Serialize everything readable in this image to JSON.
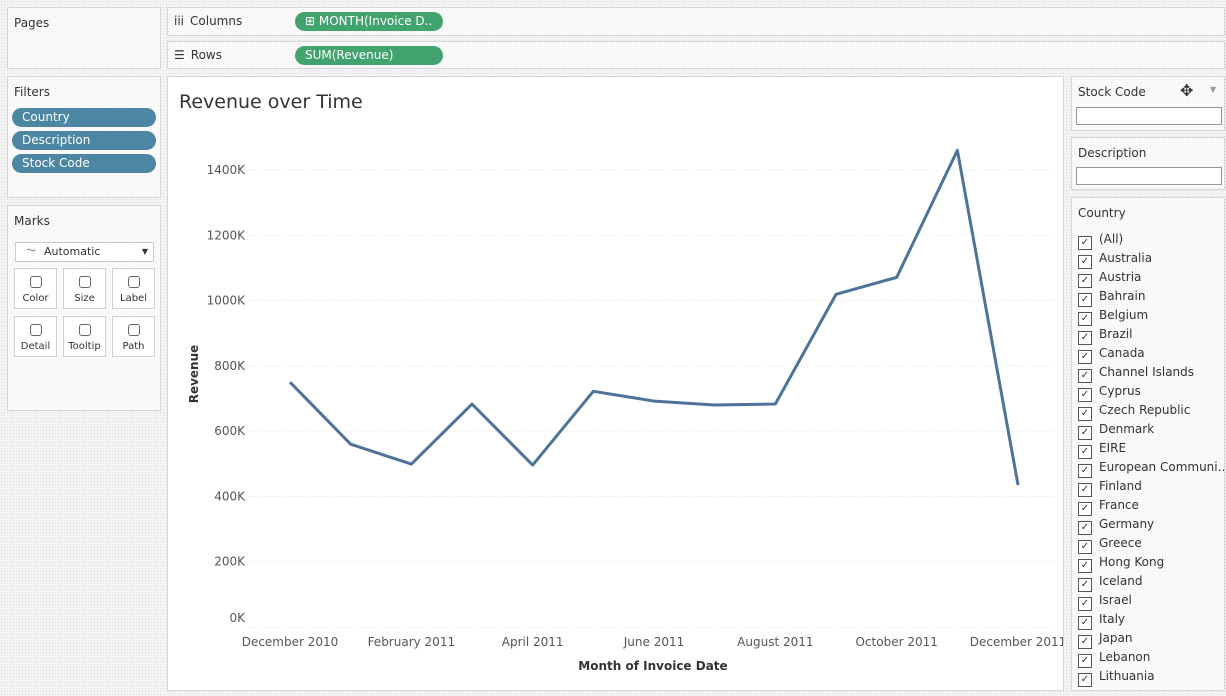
{
  "pages": {
    "title": "Pages"
  },
  "shelves": {
    "columns_label": "Columns",
    "columns_pill": "MONTH(Invoice D..",
    "rows_label": "Rows",
    "rows_pill": "SUM(Revenue)"
  },
  "filters": {
    "title": "Filters",
    "items": [
      "Country",
      "Description",
      "Stock Code"
    ]
  },
  "marks": {
    "title": "Marks",
    "mark_type": "Automatic",
    "buttons": [
      "Color",
      "Size",
      "Label",
      "Detail",
      "Tooltip",
      "Path"
    ]
  },
  "stock_code_filter": {
    "title": "Stock Code"
  },
  "description_filter": {
    "title": "Description"
  },
  "country_filter": {
    "title": "Country",
    "items": [
      "(All)",
      "Australia",
      "Austria",
      "Bahrain",
      "Belgium",
      "Brazil",
      "Canada",
      "Channel Islands",
      "Cyprus",
      "Czech Republic",
      "Denmark",
      "EIRE",
      "European Communi…",
      "Finland",
      "France",
      "Germany",
      "Greece",
      "Hong Kong",
      "Iceland",
      "Israel",
      "Italy",
      "Japan",
      "Lebanon",
      "Lithuania"
    ]
  },
  "chart_data": {
    "type": "line",
    "title": "Revenue over Time",
    "x_label": "Month of Invoice Date",
    "y_label": "Revenue",
    "categories": [
      "December 2010",
      null,
      "February 2011",
      null,
      "April 2011",
      null,
      "June 2011",
      null,
      "August 2011",
      null,
      "October 2011",
      null,
      "December 2011"
    ],
    "values": [
      750000,
      560000,
      499000,
      683000,
      496000,
      722000,
      692000,
      680000,
      683000,
      1019000,
      1071000,
      1460000,
      435000
    ],
    "color": "#4e7399",
    "ylim": [
      0,
      1550000
    ],
    "yticks": [
      {
        "value": 0,
        "label": "0K"
      },
      {
        "value": 200000,
        "label": "200K"
      },
      {
        "value": 400000,
        "label": "400K"
      },
      {
        "value": 600000,
        "label": "600K"
      },
      {
        "value": 800000,
        "label": "800K"
      },
      {
        "value": 1000000,
        "label": "1000K"
      },
      {
        "value": 1200000,
        "label": "1200K"
      },
      {
        "value": 1400000,
        "label": "1400K"
      }
    ],
    "grid": true
  }
}
